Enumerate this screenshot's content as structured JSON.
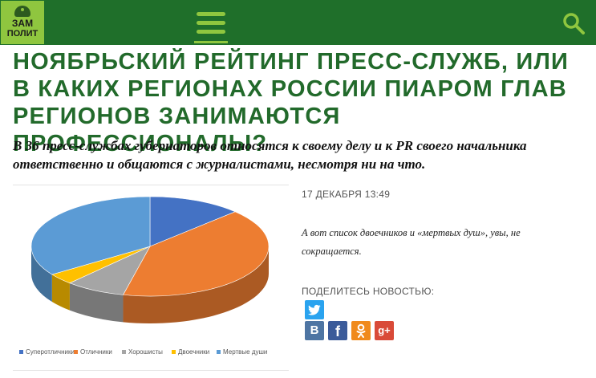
{
  "header": {
    "logo_line1": "ЗАМ",
    "logo_line2": "ПОЛИТ",
    "menu_icon": "hamburger-menu-icon",
    "search_icon": "search-icon",
    "colors": {
      "bar": "#1f6f2a",
      "accent": "#8fc63f"
    }
  },
  "article": {
    "title": "НОЯБРЬСКИЙ РЕЙТИНГ ПРЕСС-СЛУЖБ, ИЛИ В КАКИХ РЕГИОНАХ РОССИИ ПИАРОМ ГЛАВ РЕГИОНОВ ЗАНИМАЮТСЯ ПРОФЕССИОНАЛЫ?",
    "lead": "В 36 пресс-службах губернаторов относятся к своему делу и к PR своего начальника ответственно и общаются с журналистами, несмотря ни на что.",
    "date": "17 ДЕКАБРЯ 13:49",
    "quote": "А вот список двоечников и «мертвых душ», увы, не сокращается."
  },
  "share": {
    "title": "ПОДЕЛИТЕСЬ НОВОСТЬЮ:",
    "buttons": [
      {
        "icon": "twitter-icon"
      },
      {
        "icon": "vk-icon",
        "label": "В"
      },
      {
        "icon": "facebook-icon",
        "label": "f"
      },
      {
        "icon": "odnoklassniki-icon"
      },
      {
        "icon": "google-plus-icon",
        "label": "g+"
      }
    ]
  },
  "chart_data": {
    "type": "pie",
    "categories": [
      "Суперотличники",
      "Отличники",
      "Хорошисты",
      "Двоечники",
      "Мертвые души"
    ],
    "values": [
      14,
      45,
      9,
      4,
      38
    ],
    "colors": [
      "#4472c4",
      "#ed7d31",
      "#a5a5a5",
      "#ffc000",
      "#5b9bd5"
    ],
    "legend_position": "bottom",
    "style": "3d"
  }
}
